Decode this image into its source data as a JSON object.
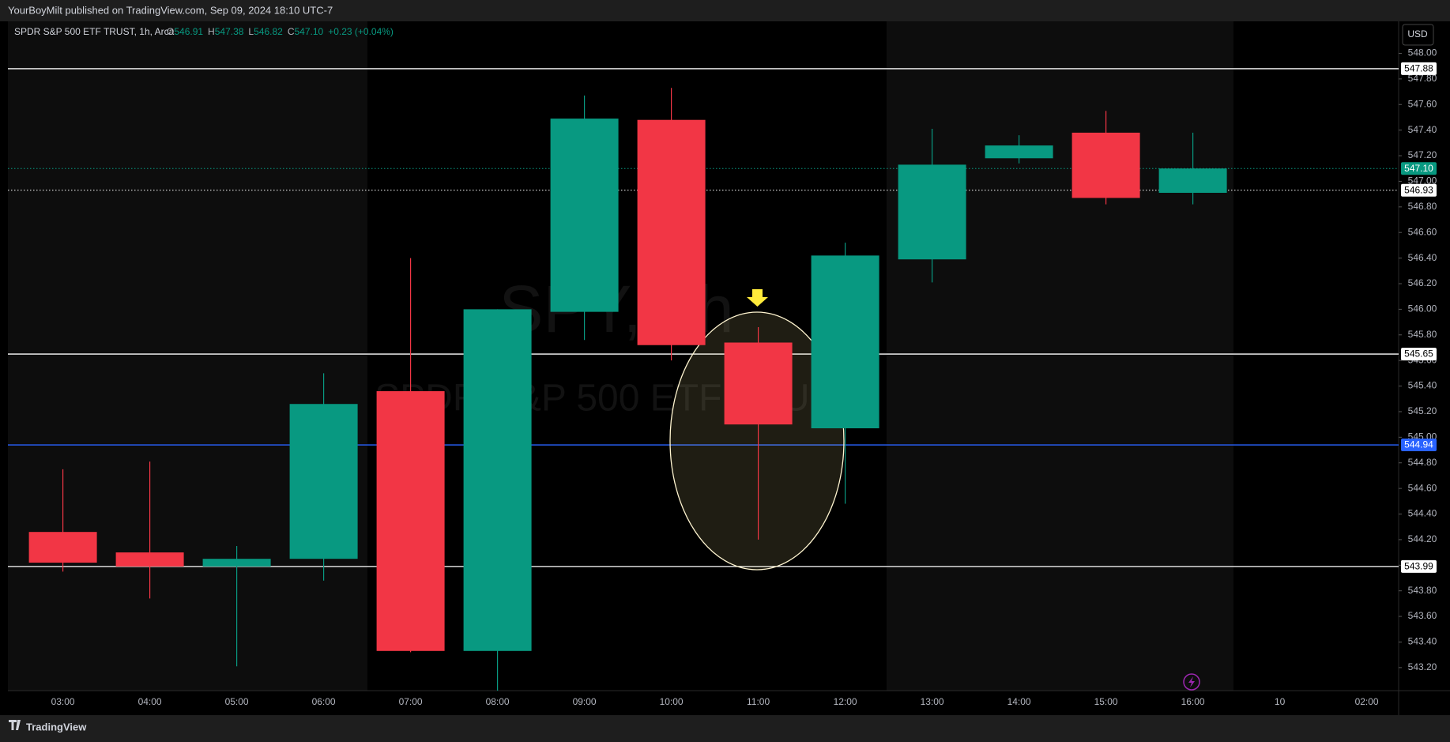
{
  "chart_data": {
    "type": "candlestick",
    "publisher": "YourBoyMilt published on TradingView.com, Sep 09, 2024 18:10 UTC-7",
    "title": "SPDR S&P 500 ETF TRUST, 1h, Arca",
    "ohlc_header": {
      "keys": [
        "O",
        "H",
        "L",
        "C"
      ],
      "labels": [
        "546.91",
        "547.38",
        "546.82",
        "547.10"
      ],
      "change": "+0.23 (+0.04%)"
    },
    "watermark": [
      "SPY, 1h",
      "SPDR S&P 500 ETF TRUST"
    ],
    "currency": "USD",
    "brand": "TradingView",
    "categories": [
      "03:00",
      "04:00",
      "05:00",
      "06:00",
      "07:00",
      "08:00",
      "09:00",
      "10:00",
      "11:00",
      "12:00",
      "13:00",
      "14:00",
      "15:00",
      "16:00",
      "10",
      "02:00"
    ],
    "open": [
      544.26,
      544.1,
      543.99,
      544.05,
      545.36,
      543.33,
      545.98,
      547.48,
      545.74,
      545.07,
      546.39,
      547.18,
      547.38,
      546.91,
      null,
      null
    ],
    "high": [
      544.75,
      544.81,
      544.15,
      545.5,
      546.4,
      546.0,
      547.67,
      547.73,
      545.86,
      546.52,
      547.41,
      547.36,
      547.55,
      547.38,
      null,
      null
    ],
    "low": [
      543.95,
      543.74,
      543.21,
      543.88,
      543.32,
      543.01,
      545.76,
      545.6,
      544.2,
      544.48,
      546.21,
      547.14,
      546.82,
      546.82,
      null,
      null
    ],
    "close": [
      544.02,
      543.99,
      544.05,
      545.26,
      543.33,
      546.0,
      547.49,
      545.72,
      545.1,
      546.42,
      547.13,
      547.28,
      546.87,
      547.1,
      null,
      null
    ],
    "up_color": "#089981",
    "down_color": "#f23645",
    "ylim": [
      543.02,
      548.25
    ],
    "yticks": [
      {
        "value": 548.0,
        "label": "548.00"
      },
      {
        "value": 547.8,
        "label": "547.80"
      },
      {
        "value": 547.6,
        "label": "547.60"
      },
      {
        "value": 547.4,
        "label": "547.40"
      },
      {
        "value": 547.2,
        "label": "547.20"
      },
      {
        "value": 547.0,
        "label": "547.00"
      },
      {
        "value": 546.8,
        "label": "546.80"
      },
      {
        "value": 546.6,
        "label": "546.60"
      },
      {
        "value": 546.4,
        "label": "546.40"
      },
      {
        "value": 546.2,
        "label": "546.20"
      },
      {
        "value": 546.0,
        "label": "546.00"
      },
      {
        "value": 545.8,
        "label": "545.80"
      },
      {
        "value": 545.6,
        "label": "545.60"
      },
      {
        "value": 545.4,
        "label": "545.40"
      },
      {
        "value": 545.2,
        "label": "545.20"
      },
      {
        "value": 545.0,
        "label": "545.00"
      },
      {
        "value": 544.8,
        "label": "544.80"
      },
      {
        "value": 544.6,
        "label": "544.60"
      },
      {
        "value": 544.4,
        "label": "544.40"
      },
      {
        "value": 544.2,
        "label": "544.20"
      },
      {
        "value": 544.0,
        "label": "544.00"
      },
      {
        "value": 543.8,
        "label": "543.80"
      },
      {
        "value": 543.6,
        "label": "543.60"
      },
      {
        "value": 543.4,
        "label": "543.40"
      },
      {
        "value": 543.2,
        "label": "543.20"
      }
    ],
    "price_lines": [
      {
        "value": 547.88,
        "color": "#ffffff",
        "style": "solid"
      },
      {
        "value": 547.1,
        "label": "547.10",
        "color": "#089981",
        "style": "dotted"
      },
      {
        "value": 546.93,
        "color": "#ffffff",
        "style": "dotted"
      },
      {
        "value": 545.65,
        "color": "#ffffff",
        "style": "solid"
      },
      {
        "value": 544.94,
        "color": "#2962ff",
        "style": "solid"
      },
      {
        "value": 543.99,
        "color": "#ffffff",
        "style": "solid"
      }
    ]
  }
}
